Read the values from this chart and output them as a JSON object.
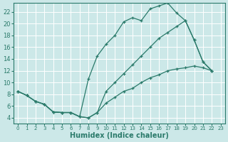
{
  "xlabel": "Humidex (Indice chaleur)",
  "background_color": "#cce8e8",
  "grid_color": "#b8d8d8",
  "line_color": "#2a7a6a",
  "xlim": [
    -0.5,
    23.5
  ],
  "ylim": [
    3.0,
    23.5
  ],
  "xticks": [
    0,
    1,
    2,
    3,
    4,
    5,
    6,
    7,
    8,
    9,
    10,
    11,
    12,
    13,
    14,
    15,
    16,
    17,
    18,
    19,
    20,
    21,
    22,
    23
  ],
  "yticks": [
    4,
    6,
    8,
    10,
    12,
    14,
    16,
    18,
    20,
    22
  ],
  "curve_top_x": [
    0,
    1,
    2,
    3,
    4,
    5,
    6,
    7,
    8,
    9,
    10,
    11,
    12,
    13,
    14,
    15,
    16,
    17,
    18,
    19,
    20,
    21,
    22
  ],
  "curve_top_y": [
    8.5,
    7.8,
    6.8,
    6.3,
    5.0,
    4.9,
    4.9,
    4.2,
    10.6,
    14.5,
    16.5,
    18.0,
    20.3,
    21.0,
    20.5,
    22.5,
    23.0,
    23.5,
    21.8,
    20.5,
    17.2,
    13.5,
    12.0
  ],
  "curve_mid_x": [
    0,
    1,
    2,
    3,
    4,
    5,
    6,
    7,
    8,
    9,
    10,
    11,
    12,
    13,
    14,
    15,
    16,
    17,
    18,
    19,
    20,
    21,
    22
  ],
  "curve_mid_y": [
    8.5,
    7.8,
    6.8,
    6.3,
    5.0,
    4.9,
    4.9,
    4.2,
    4.0,
    4.9,
    8.5,
    10.0,
    11.5,
    13.0,
    14.5,
    16.0,
    17.5,
    18.5,
    19.5,
    20.5,
    17.2,
    13.5,
    12.0
  ],
  "curve_bot_x": [
    0,
    1,
    2,
    3,
    4,
    5,
    6,
    7,
    8,
    9,
    10,
    11,
    12,
    13,
    14,
    15,
    16,
    17,
    18,
    19,
    20,
    21,
    22
  ],
  "curve_bot_y": [
    8.5,
    7.8,
    6.8,
    6.3,
    5.0,
    4.9,
    4.9,
    4.2,
    4.0,
    4.9,
    6.5,
    7.5,
    8.5,
    9.0,
    10.0,
    10.8,
    11.3,
    12.0,
    12.3,
    12.5,
    12.8,
    12.5,
    12.0
  ]
}
